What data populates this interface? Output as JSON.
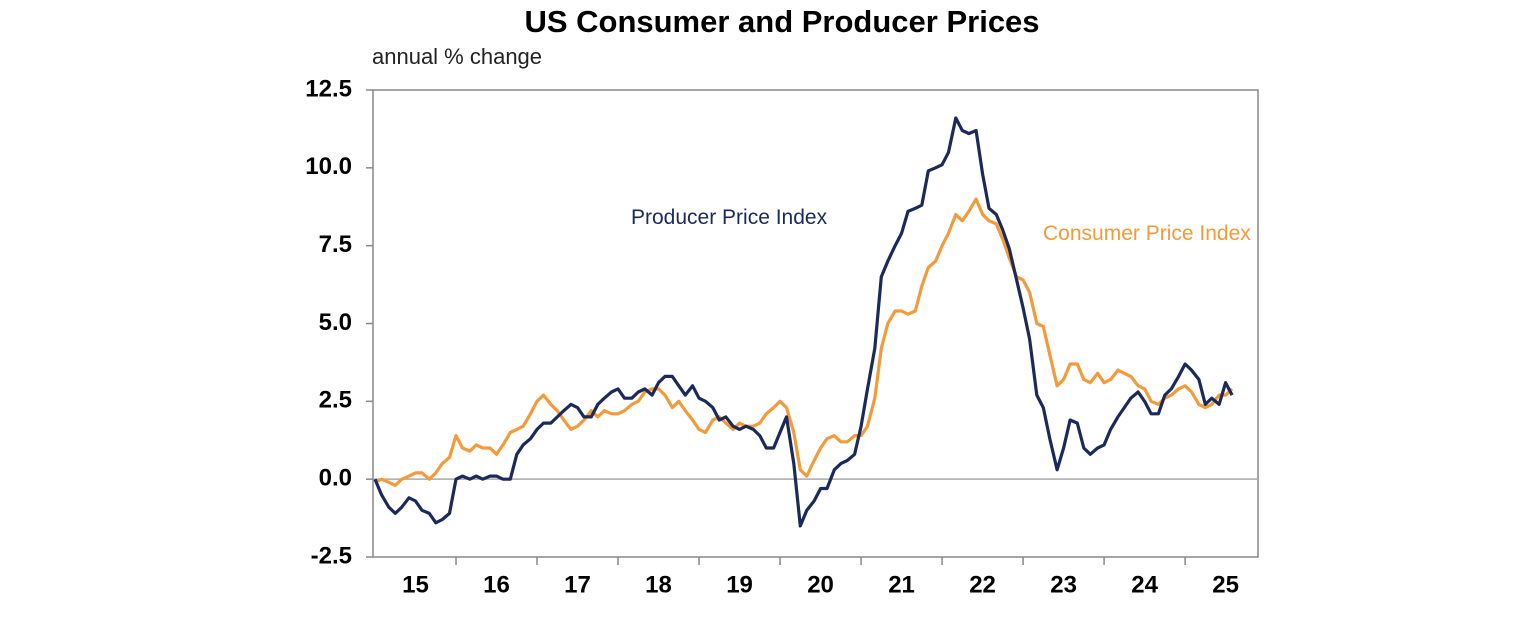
{
  "chart_data": {
    "type": "line",
    "title": "US Consumer and Producer Prices",
    "subtitle": "annual % change",
    "x": [
      15,
      15.08,
      15.17,
      15.25,
      15.33,
      15.42,
      15.5,
      15.58,
      15.67,
      15.75,
      15.83,
      15.92,
      16,
      16.08,
      16.17,
      16.25,
      16.33,
      16.42,
      16.5,
      16.58,
      16.67,
      16.75,
      16.83,
      16.92,
      17,
      17.08,
      17.17,
      17.25,
      17.33,
      17.42,
      17.5,
      17.58,
      17.67,
      17.75,
      17.83,
      17.92,
      18,
      18.08,
      18.17,
      18.25,
      18.33,
      18.42,
      18.5,
      18.58,
      18.67,
      18.75,
      18.83,
      18.92,
      19,
      19.08,
      19.17,
      19.25,
      19.33,
      19.42,
      19.5,
      19.58,
      19.67,
      19.75,
      19.83,
      19.92,
      20,
      20.08,
      20.17,
      20.25,
      20.33,
      20.42,
      20.5,
      20.58,
      20.67,
      20.75,
      20.83,
      20.92,
      21,
      21.08,
      21.17,
      21.25,
      21.33,
      21.42,
      21.5,
      21.58,
      21.67,
      21.75,
      21.83,
      21.92,
      22,
      22.08,
      22.17,
      22.25,
      22.33,
      22.42,
      22.5,
      22.58,
      22.67,
      22.75,
      22.83,
      22.92,
      23,
      23.08,
      23.17,
      23.25,
      23.33,
      23.42,
      23.5,
      23.58,
      23.67,
      23.75,
      23.83,
      23.92,
      24,
      24.08,
      24.17,
      24.25,
      24.33,
      24.42,
      24.5,
      24.58,
      24.67,
      24.75,
      24.83,
      24.92,
      25,
      25.08,
      25.17,
      25.25,
      25.33,
      25.42,
      25.5,
      25.58
    ],
    "series": [
      {
        "name": "Consumer Price Index",
        "color": "#f39a3a",
        "values": [
          -0.1,
          0.0,
          -0.1,
          -0.2,
          0.0,
          0.1,
          0.2,
          0.2,
          0.0,
          0.2,
          0.5,
          0.7,
          1.4,
          1.0,
          0.9,
          1.1,
          1.0,
          1.0,
          0.8,
          1.1,
          1.5,
          1.6,
          1.7,
          2.1,
          2.5,
          2.7,
          2.4,
          2.2,
          1.9,
          1.6,
          1.7,
          1.9,
          2.2,
          2.0,
          2.2,
          2.1,
          2.1,
          2.2,
          2.4,
          2.5,
          2.8,
          2.9,
          2.9,
          2.7,
          2.3,
          2.5,
          2.2,
          1.9,
          1.6,
          1.5,
          1.9,
          2.0,
          1.8,
          1.6,
          1.8,
          1.7,
          1.7,
          1.8,
          2.1,
          2.3,
          2.5,
          2.3,
          1.5,
          0.3,
          0.1,
          0.6,
          1.0,
          1.3,
          1.4,
          1.2,
          1.2,
          1.4,
          1.4,
          1.7,
          2.6,
          4.2,
          5.0,
          5.4,
          5.4,
          5.3,
          5.4,
          6.2,
          6.8,
          7.0,
          7.5,
          7.9,
          8.5,
          8.3,
          8.6,
          9.0,
          8.5,
          8.3,
          8.2,
          7.7,
          7.1,
          6.5,
          6.4,
          6.0,
          5.0,
          4.9,
          4.0,
          3.0,
          3.2,
          3.7,
          3.7,
          3.2,
          3.1,
          3.4,
          3.1,
          3.2,
          3.5,
          3.4,
          3.3,
          3.0,
          2.9,
          2.5,
          2.4,
          2.6,
          2.7,
          2.9,
          3.0,
          2.8,
          2.4,
          2.3,
          2.4,
          2.7,
          2.7,
          2.9
        ]
      },
      {
        "name": "Producer Price Index",
        "color": "#1b2a5a",
        "values": [
          0.0,
          -0.5,
          -0.9,
          -1.1,
          -0.9,
          -0.6,
          -0.7,
          -1.0,
          -1.1,
          -1.4,
          -1.3,
          -1.1,
          0.0,
          0.1,
          0.0,
          0.1,
          0.0,
          0.1,
          0.1,
          0.0,
          0.0,
          0.8,
          1.1,
          1.3,
          1.6,
          1.8,
          1.8,
          2.0,
          2.2,
          2.4,
          2.3,
          2.0,
          2.0,
          2.4,
          2.6,
          2.8,
          2.9,
          2.6,
          2.6,
          2.8,
          2.9,
          2.7,
          3.1,
          3.3,
          3.3,
          3.0,
          2.7,
          3.0,
          2.6,
          2.5,
          2.3,
          1.9,
          2.0,
          1.7,
          1.6,
          1.7,
          1.6,
          1.4,
          1.0,
          1.0,
          1.5,
          2.0,
          0.5,
          -1.5,
          -1.0,
          -0.7,
          -0.3,
          -0.3,
          0.3,
          0.5,
          0.6,
          0.8,
          1.7,
          2.9,
          4.2,
          6.5,
          7.0,
          7.5,
          7.9,
          8.6,
          8.7,
          8.8,
          9.9,
          10.0,
          10.1,
          10.5,
          11.6,
          11.2,
          11.1,
          11.2,
          9.8,
          8.7,
          8.5,
          8.0,
          7.4,
          6.4,
          5.5,
          4.5,
          2.7,
          2.3,
          1.3,
          0.3,
          1.0,
          1.9,
          1.8,
          1.0,
          0.8,
          1.0,
          1.1,
          1.6,
          2.0,
          2.3,
          2.6,
          2.8,
          2.5,
          2.1,
          2.1,
          2.7,
          2.9,
          3.3,
          3.7,
          3.5,
          3.2,
          2.4,
          2.6,
          2.4,
          3.1,
          2.7
        ]
      }
    ],
    "xlim": [
      15,
      25.9
    ],
    "xticks": [
      {
        "value": 15.5,
        "label": "15"
      },
      {
        "value": 16.5,
        "label": "16"
      },
      {
        "value": 17.5,
        "label": "17"
      },
      {
        "value": 18.5,
        "label": "18"
      },
      {
        "value": 19.5,
        "label": "19"
      },
      {
        "value": 20.5,
        "label": "20"
      },
      {
        "value": 21.5,
        "label": "21"
      },
      {
        "value": 22.5,
        "label": "22"
      },
      {
        "value": 23.5,
        "label": "23"
      },
      {
        "value": 24.5,
        "label": "24"
      },
      {
        "value": 25.5,
        "label": "25"
      }
    ],
    "ylim": [
      -2.5,
      12.5
    ],
    "yticks": [
      -2.5,
      {
        "value": 0,
        "label": "0.0"
      },
      2.5,
      {
        "value": 5,
        "label": "5.0"
      },
      7.5,
      {
        "value": 10,
        "label": "10.0"
      },
      12.5
    ]
  }
}
